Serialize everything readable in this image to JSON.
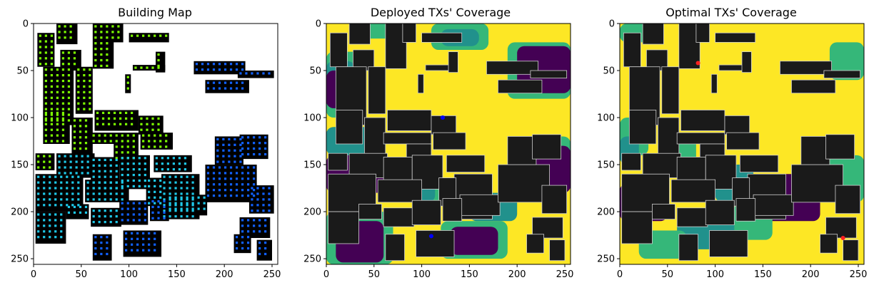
{
  "figure": {
    "panels": [
      {
        "id": "building-map",
        "title": "Building Map",
        "kind": "building-map"
      },
      {
        "id": "deployed-coverage",
        "title": "Deployed TXs' Coverage",
        "kind": "coverage"
      },
      {
        "id": "optimal-coverage",
        "title": "Optimal TXs' Coverage",
        "kind": "coverage"
      }
    ]
  },
  "chart_data": [
    {
      "type": "heatmap",
      "title": "Building Map",
      "xlabel": "",
      "ylabel": "",
      "xlim": [
        0,
        255
      ],
      "ylim": [
        255,
        0
      ],
      "x_ticks": [
        0,
        50,
        100,
        150,
        200,
        250
      ],
      "y_ticks": [
        0,
        50,
        100,
        150,
        200,
        250
      ],
      "colors": {
        "background": "#ffffff",
        "building": "#000000",
        "marker_green": "#7cfc00",
        "marker_yellow": "#e8e820",
        "marker_cyan": "#1ec8e8",
        "marker_blue": "#1060ff",
        "marker_darkblue": "#1030d0"
      }
    },
    {
      "type": "heatmap",
      "title": "Deployed TXs' Coverage",
      "xlabel": "",
      "ylabel": "",
      "xlim": [
        0,
        255
      ],
      "ylim": [
        255,
        0
      ],
      "x_ticks": [
        0,
        50,
        100,
        150,
        200,
        250
      ],
      "y_ticks": [
        0,
        50,
        100,
        150,
        200,
        250
      ],
      "colors": {
        "covered": "#fde725",
        "mid": "#35b779",
        "low": "#21918c",
        "none": "#440154",
        "building": "#1a1a1a",
        "tx": "#0000ff"
      }
    },
    {
      "type": "heatmap",
      "title": "Optimal TXs' Coverage",
      "xlabel": "",
      "ylabel": "",
      "xlim": [
        0,
        255
      ],
      "ylim": [
        255,
        0
      ],
      "x_ticks": [
        0,
        50,
        100,
        150,
        200,
        250
      ],
      "y_ticks": [
        0,
        50,
        100,
        150,
        200,
        250
      ],
      "colors": {
        "covered": "#fde725",
        "mid": "#35b779",
        "low": "#21918c",
        "none": "#440154",
        "building": "#1a1a1a",
        "tx": "#ff2020"
      }
    }
  ]
}
